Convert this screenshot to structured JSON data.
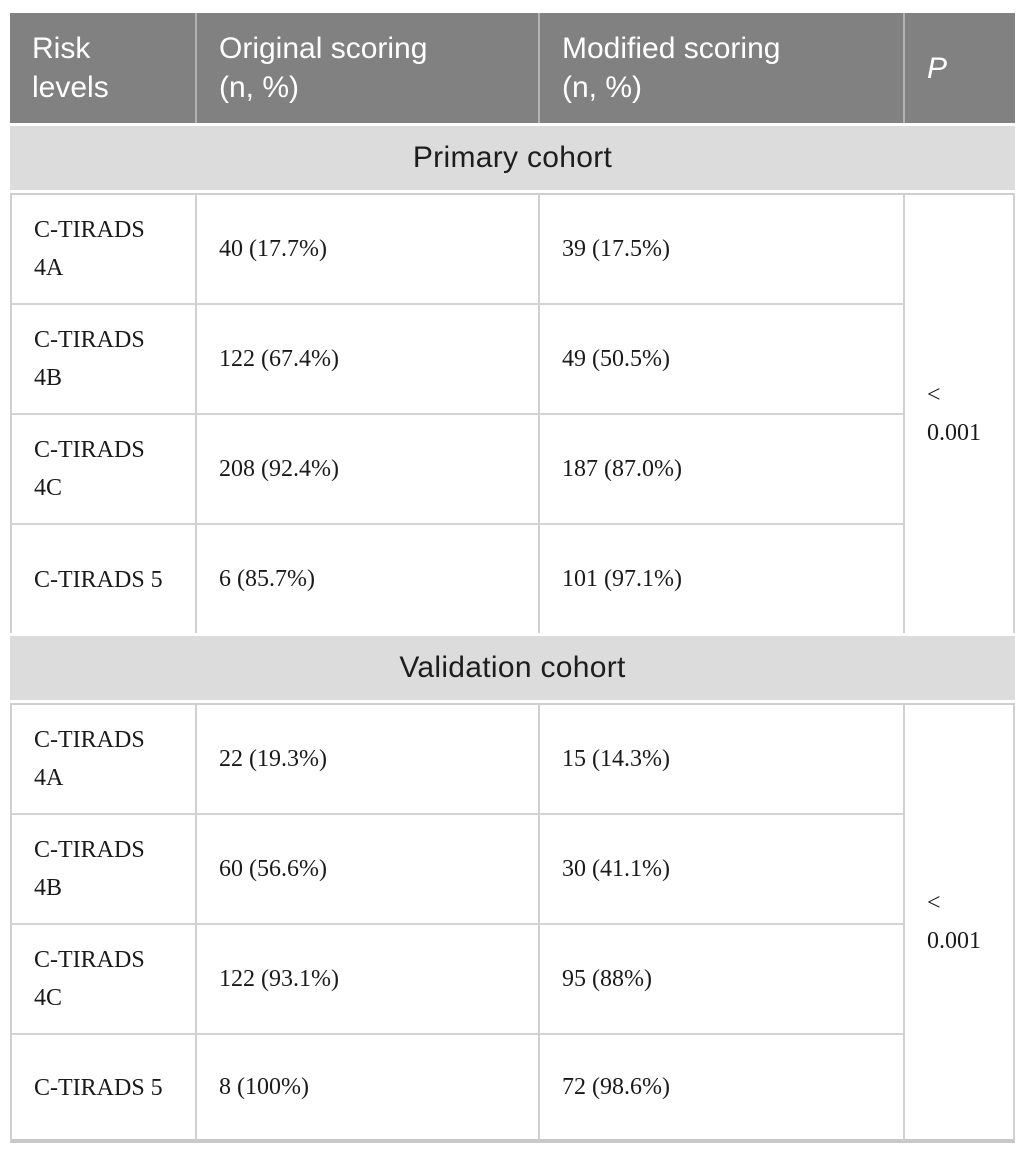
{
  "table": {
    "columns": [
      {
        "label": "Risk levels"
      },
      {
        "label": "Original scoring (n, %)"
      },
      {
        "label": "Modified scoring (n, %)"
      },
      {
        "label": "P"
      }
    ],
    "sections": [
      {
        "title": "Primary cohort",
        "p_value": "< 0.001",
        "rows": [
          {
            "risk": "C-TIRADS 4A",
            "original": "40 (17.7%)",
            "modified": "39 (17.5%)"
          },
          {
            "risk": "C-TIRADS 4B",
            "original": "122 (67.4%)",
            "modified": "49 (50.5%)"
          },
          {
            "risk": "C-TIRADS 4C",
            "original": "208 (92.4%)",
            "modified": "187 (87.0%)"
          },
          {
            "risk": "C-TIRADS 5",
            "original": "6 (85.7%)",
            "modified": "101 (97.1%)"
          }
        ]
      },
      {
        "title": "Validation cohort",
        "p_value": "< 0.001",
        "rows": [
          {
            "risk": "C-TIRADS 4A",
            "original": "22 (19.3%)",
            "modified": "15 (14.3%)"
          },
          {
            "risk": "C-TIRADS 4B",
            "original": "60 (56.6%)",
            "modified": "30 (41.1%)"
          },
          {
            "risk": "C-TIRADS 4C",
            "original": "122 (93.1%)",
            "modified": "95 (88%)"
          },
          {
            "risk": "C-TIRADS 5",
            "original": "8 (100%)",
            "modified": "72 (98.6%)"
          }
        ]
      }
    ],
    "colors": {
      "header_bg": "#818181",
      "header_text": "#ffffff",
      "section_band_bg": "#dcdcdc",
      "row_border": "#d0d0d0",
      "bottom_rule": "#c8c8c8",
      "body_text": "#1a1a1a"
    }
  }
}
